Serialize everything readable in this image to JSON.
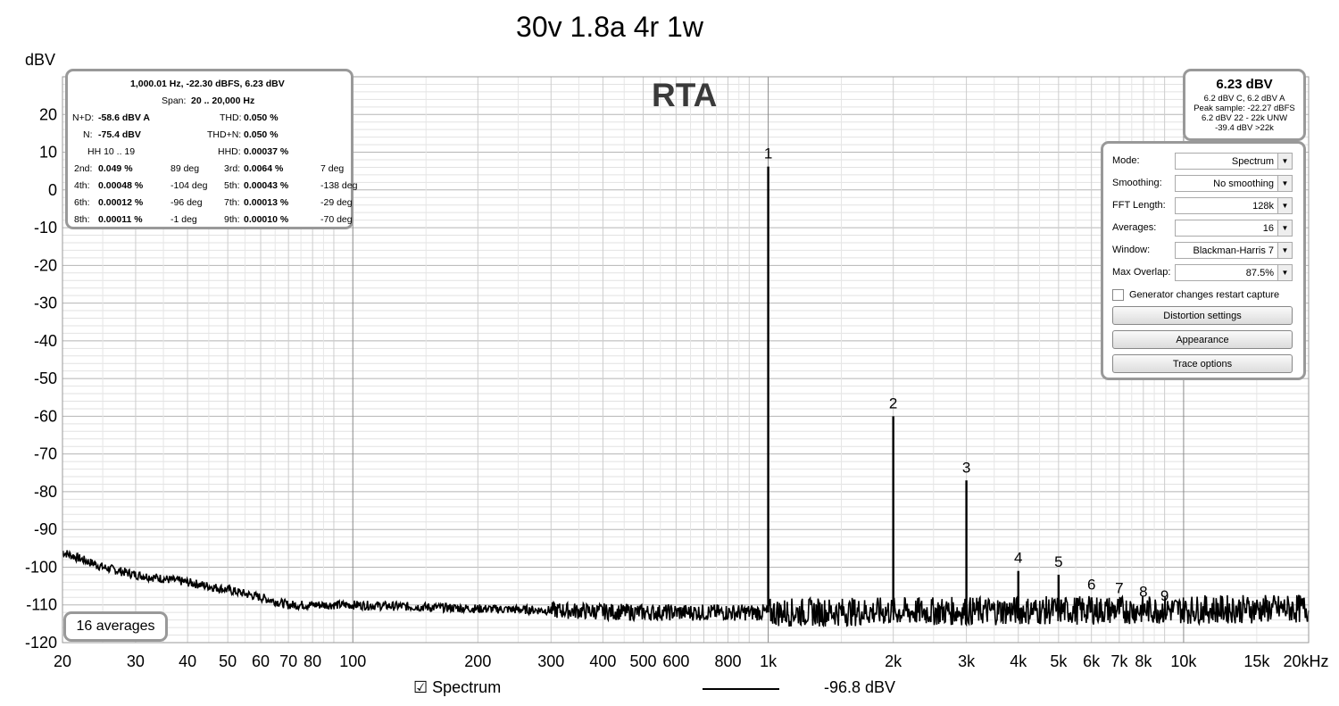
{
  "title": "30v 1.8a 4r 1w",
  "y_unit": "dBV",
  "rta_label": "RTA",
  "info_panel": {
    "header": "1,000.01 Hz, -22.30 dBFS, 6.23 dBV",
    "span_label": "Span:",
    "span_value": "20 .. 20,000 Hz",
    "nd_label": "N+D:",
    "nd_value": "-58.6 dBV A",
    "thd_label": "THD:",
    "thd_value": "0.050 %",
    "n_label": "N:",
    "n_value": "-75.4 dBV",
    "thdn_label": "THD+N:",
    "thdn_value": "0.050 %",
    "hh_label": "HH 10 .. 19",
    "hhd_label": "HHD:",
    "hhd_value": "0.00037 %",
    "harmonics": [
      {
        "l1": "2nd:",
        "v1": "0.049 %",
        "d1": "89 deg",
        "l2": "3rd:",
        "v2": "0.0064 %",
        "d2": "7 deg"
      },
      {
        "l1": "4th:",
        "v1": "0.00048 %",
        "d1": "-104 deg",
        "l2": "5th:",
        "v2": "0.00043 %",
        "d2": "-138 deg"
      },
      {
        "l1": "6th:",
        "v1": "0.00012 %",
        "d1": "-96 deg",
        "l2": "7th:",
        "v2": "0.00013 %",
        "d2": "-29 deg"
      },
      {
        "l1": "8th:",
        "v1": "0.00011 %",
        "d1": "-1 deg",
        "l2": "9th:",
        "v2": "0.00010 %",
        "d2": "-70 deg"
      }
    ]
  },
  "level_panel": {
    "main": "6.23 dBV",
    "line1": "6.2 dBV C, 6.2 dBV A",
    "line2": "Peak sample: -22.27 dBFS",
    "line3": "6.2 dBV 22 - 22k UNW",
    "line4": "-39.4 dBV >22k"
  },
  "controls": {
    "rows": [
      {
        "label": "Mode:",
        "value": "Spectrum"
      },
      {
        "label": "Smoothing:",
        "value": "No  smoothing"
      },
      {
        "label": "FFT Length:",
        "value": "128k"
      },
      {
        "label": "Averages:",
        "value": "16"
      },
      {
        "label": "Window:",
        "value": "Blackman-Harris 7"
      },
      {
        "label": "Max Overlap:",
        "value": "87.5%"
      }
    ],
    "checkbox_label": "Generator changes restart capture",
    "btn_distortion": "Distortion settings",
    "btn_appearance": "Appearance",
    "btn_trace": "Trace options"
  },
  "averages_badge": "16 averages",
  "legend": {
    "series": "Spectrum",
    "value": "-96.8 dBV",
    "checkbox": "☑"
  },
  "colors": {
    "trace": "#000000",
    "grid": "#c8c8c8",
    "grid_major": "#999999",
    "panel_border": "#999999"
  },
  "chart_data": {
    "type": "line",
    "x_scale": "log",
    "xlim": [
      20,
      20000
    ],
    "ylim": [
      -120,
      30
    ],
    "ylabel": "dBV",
    "y_ticks": [
      20,
      10,
      0,
      -10,
      -20,
      -30,
      -40,
      -50,
      -60,
      -70,
      -80,
      -90,
      -100,
      -110,
      -120
    ],
    "x_ticks": [
      {
        "v": 20,
        "t": "20"
      },
      {
        "v": 30,
        "t": "30"
      },
      {
        "v": 40,
        "t": "40"
      },
      {
        "v": 50,
        "t": "50"
      },
      {
        "v": 60,
        "t": "60"
      },
      {
        "v": 70,
        "t": "70"
      },
      {
        "v": 80,
        "t": "80"
      },
      {
        "v": 100,
        "t": "100"
      },
      {
        "v": 200,
        "t": "200"
      },
      {
        "v": 300,
        "t": "300"
      },
      {
        "v": 400,
        "t": "400"
      },
      {
        "v": 500,
        "t": "500"
      },
      {
        "v": 600,
        "t": "600"
      },
      {
        "v": 800,
        "t": "800"
      },
      {
        "v": 1000,
        "t": "1k"
      },
      {
        "v": 2000,
        "t": "2k"
      },
      {
        "v": 3000,
        "t": "3k"
      },
      {
        "v": 4000,
        "t": "4k"
      },
      {
        "v": 5000,
        "t": "5k"
      },
      {
        "v": 6000,
        "t": "6k"
      },
      {
        "v": 7000,
        "t": "7k"
      },
      {
        "v": 8000,
        "t": "8k"
      },
      {
        "v": 10000,
        "t": "10k"
      },
      {
        "v": 15000,
        "t": "15k"
      },
      {
        "v": 20000,
        "t": "20kHz"
      }
    ],
    "noise_floor": [
      [
        20,
        -96
      ],
      [
        25,
        -100
      ],
      [
        30,
        -102
      ],
      [
        40,
        -104
      ],
      [
        50,
        -106
      ],
      [
        60,
        -108
      ],
      [
        70,
        -110
      ],
      [
        100,
        -110
      ],
      [
        200,
        -111
      ],
      [
        500,
        -112
      ],
      [
        1000,
        -112
      ],
      [
        20000,
        -111
      ]
    ],
    "harmonics": [
      {
        "label": "1",
        "freq": 1000,
        "level": 6.2
      },
      {
        "label": "2",
        "freq": 2000,
        "level": -60
      },
      {
        "label": "3",
        "freq": 3000,
        "level": -77
      },
      {
        "label": "4",
        "freq": 4000,
        "level": -101
      },
      {
        "label": "5",
        "freq": 5000,
        "level": -102
      },
      {
        "label": "6",
        "freq": 6000,
        "level": -108
      },
      {
        "label": "7",
        "freq": 7000,
        "level": -109
      },
      {
        "label": "8",
        "freq": 8000,
        "level": -110
      },
      {
        "label": "9",
        "freq": 9000,
        "level": -111
      }
    ]
  }
}
